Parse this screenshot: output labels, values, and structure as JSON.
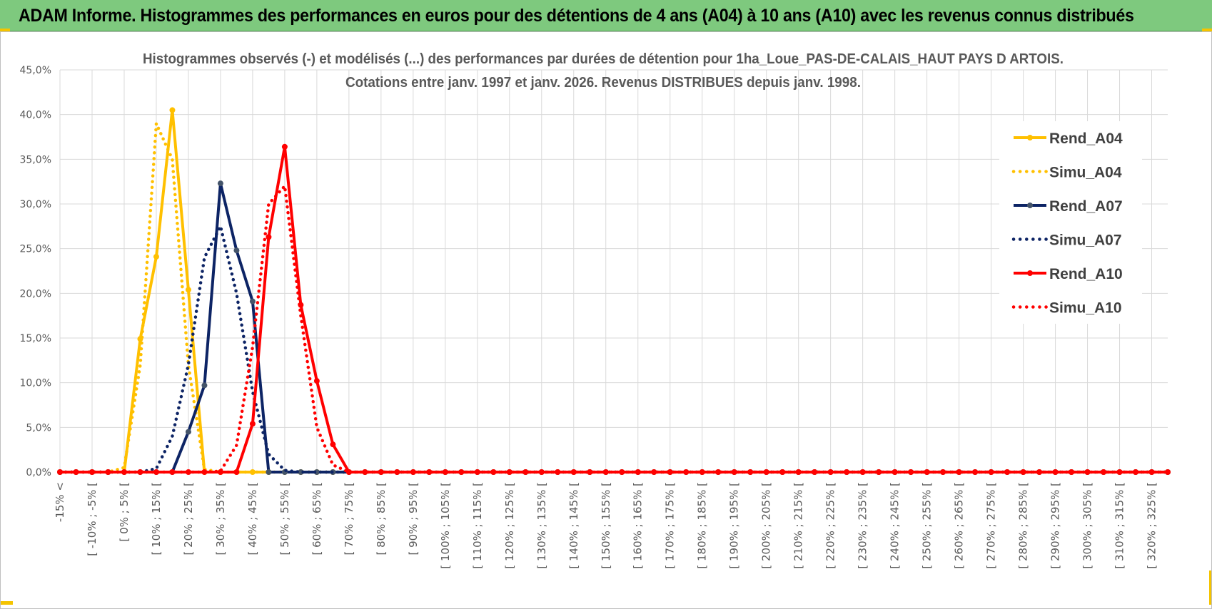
{
  "banner": {
    "title": "ADAM Informe. Histogrammes des performances en euros pour des détentions de 4 ans (A04) à 10 ans (A10) avec les revenus connus distribués"
  },
  "chart_data": {
    "type": "line",
    "title": "Histogrammes observés (-) et modélisés (...) des performances par durées de détention pour 1ha_Loue_PAS-DE-CALAIS_HAUT PAYS D ARTOIS.",
    "subtitle": "Cotations entre janv. 1997 et janv. 2026. Revenus DISTRIBUES depuis janv. 1998.",
    "ylim": [
      0,
      0.45
    ],
    "yticks": [
      "0,0%",
      "5,0%",
      "10,0%",
      "15,0%",
      "20,0%",
      "25,0%",
      "30,0%",
      "35,0%",
      "40,0%",
      "45,0%"
    ],
    "grid": true,
    "legend_position": "right",
    "categories": [
      "-15% <",
      "[ -10% ; -5% [",
      "[ 0% ; 5% [",
      "[ 10% ; 15% [",
      "[ 20% ; 25% [",
      "[ 30% ; 35% [",
      "[ 40% ; 45% [",
      "[ 50% ; 55% [",
      "[ 60% ; 65% [",
      "[ 70% ; 75% [",
      "[ 80% ; 85% [",
      "[ 90% ; 95% [",
      "[ 100% ; 105% [",
      "[ 110% ; 115% [",
      "[ 120% ; 125% [",
      "[ 130% ; 135% [",
      "[ 140% ; 145% [",
      "[ 150% ; 155% [",
      "[ 160% ; 165% [",
      "[ 170% ; 175% [",
      "[ 180% ; 185% [",
      "[ 190% ; 195% [",
      "[ 200% ; 205% [",
      "[ 210% ; 215% [",
      "[ 220% ; 225% [",
      "[ 230% ; 235% [",
      "[ 240% ; 245% [",
      "[ 250% ; 255% [",
      "[ 260% ; 265% [",
      "[ 270% ; 275% [",
      "[ 280% ; 285% [",
      "[ 290% ; 295% [",
      "[ 300% ; 305% [",
      "[ 310% ; 315% [",
      "[ 320% ; 325% ["
    ],
    "x": [
      -15,
      -10,
      -5,
      0,
      5,
      10,
      15,
      20,
      25,
      30,
      35,
      40,
      45,
      50,
      55,
      60,
      65,
      70,
      75,
      80,
      85,
      90,
      95,
      100,
      105,
      110,
      115,
      120,
      125,
      130,
      135,
      140,
      145,
      150,
      155,
      160,
      165,
      170,
      175,
      180,
      185,
      190,
      195,
      200,
      205,
      210,
      215,
      220,
      225,
      230,
      235,
      240,
      245,
      250,
      255,
      260,
      265,
      270,
      275,
      280,
      285,
      290,
      295,
      300,
      305,
      310,
      315,
      320,
      325,
      330
    ],
    "series": [
      {
        "name": "Rend_A04",
        "style": "solid",
        "color": "#ffc000",
        "values": [
          0,
          0,
          0,
          0,
          0,
          0.149,
          0.241,
          0.405,
          0.204,
          0,
          0,
          0,
          0,
          0,
          0,
          0,
          0,
          0,
          0,
          0,
          0,
          0,
          0,
          0,
          0,
          0,
          0,
          0,
          0,
          0,
          0,
          0,
          0,
          0,
          0,
          0,
          0,
          0,
          0,
          0,
          0,
          0,
          0,
          0,
          0,
          0,
          0,
          0,
          0,
          0,
          0,
          0,
          0,
          0,
          0,
          0,
          0,
          0,
          0,
          0,
          0,
          0,
          0,
          0,
          0,
          0,
          0,
          0,
          0,
          0
        ]
      },
      {
        "name": "Simu_A04",
        "style": "dotted",
        "color": "#ffc000",
        "values": [
          0,
          0,
          0,
          0,
          0.005,
          0.12,
          0.39,
          0.35,
          0.12,
          0.003,
          0,
          0,
          0,
          0,
          0,
          0,
          0,
          0,
          0,
          0,
          0,
          0,
          0,
          0,
          0,
          0,
          0,
          0,
          0,
          0,
          0,
          0,
          0,
          0,
          0,
          0,
          0,
          0,
          0,
          0,
          0,
          0,
          0,
          0,
          0,
          0,
          0,
          0,
          0,
          0,
          0,
          0,
          0,
          0,
          0,
          0,
          0,
          0,
          0,
          0,
          0,
          0,
          0,
          0,
          0,
          0,
          0,
          0,
          0,
          0
        ]
      },
      {
        "name": "Rend_A07",
        "style": "solid",
        "color": "#0d2465",
        "values": [
          0,
          0,
          0,
          0,
          0,
          0,
          0,
          0,
          0.045,
          0.097,
          0.323,
          0.248,
          0.191,
          0,
          0,
          0,
          0,
          0,
          0,
          0,
          0,
          0,
          0,
          0,
          0,
          0,
          0,
          0,
          0,
          0,
          0,
          0,
          0,
          0,
          0,
          0,
          0,
          0,
          0,
          0,
          0,
          0,
          0,
          0,
          0,
          0,
          0,
          0,
          0,
          0,
          0,
          0,
          0,
          0,
          0,
          0,
          0,
          0,
          0,
          0,
          0,
          0,
          0,
          0,
          0,
          0,
          0,
          0,
          0,
          0
        ]
      },
      {
        "name": "Simu_A07",
        "style": "dotted",
        "color": "#0d2465",
        "values": [
          0,
          0,
          0,
          0,
          0,
          0,
          0.004,
          0.04,
          0.12,
          0.24,
          0.275,
          0.2,
          0.09,
          0.02,
          0.002,
          0,
          0,
          0,
          0,
          0,
          0,
          0,
          0,
          0,
          0,
          0,
          0,
          0,
          0,
          0,
          0,
          0,
          0,
          0,
          0,
          0,
          0,
          0,
          0,
          0,
          0,
          0,
          0,
          0,
          0,
          0,
          0,
          0,
          0,
          0,
          0,
          0,
          0,
          0,
          0,
          0,
          0,
          0,
          0,
          0,
          0,
          0,
          0,
          0,
          0,
          0,
          0,
          0,
          0,
          0
        ]
      },
      {
        "name": "Rend_A10",
        "style": "solid",
        "color": "#ff0000",
        "values": [
          0,
          0,
          0,
          0,
          0,
          0,
          0,
          0,
          0,
          0,
          0,
          0,
          0.054,
          0.263,
          0.364,
          0.187,
          0.102,
          0.031,
          0,
          0,
          0,
          0,
          0,
          0,
          0,
          0,
          0,
          0,
          0,
          0,
          0,
          0,
          0,
          0,
          0,
          0,
          0,
          0,
          0,
          0,
          0,
          0,
          0,
          0,
          0,
          0,
          0,
          0,
          0,
          0,
          0,
          0,
          0,
          0,
          0,
          0,
          0,
          0,
          0,
          0,
          0,
          0,
          0,
          0,
          0,
          0,
          0,
          0,
          0,
          0
        ]
      },
      {
        "name": "Simu_A10",
        "style": "dotted",
        "color": "#ff0000",
        "values": [
          0,
          0,
          0,
          0,
          0,
          0,
          0,
          0,
          0,
          0,
          0.001,
          0.03,
          0.14,
          0.3,
          0.32,
          0.175,
          0.05,
          0.008,
          0,
          0,
          0,
          0,
          0,
          0,
          0,
          0,
          0,
          0,
          0,
          0,
          0,
          0,
          0,
          0,
          0,
          0,
          0,
          0,
          0,
          0,
          0,
          0,
          0,
          0,
          0,
          0,
          0,
          0,
          0,
          0,
          0,
          0,
          0,
          0,
          0,
          0,
          0,
          0,
          0,
          0,
          0,
          0,
          0,
          0,
          0,
          0,
          0,
          0,
          0,
          0
        ]
      }
    ]
  }
}
